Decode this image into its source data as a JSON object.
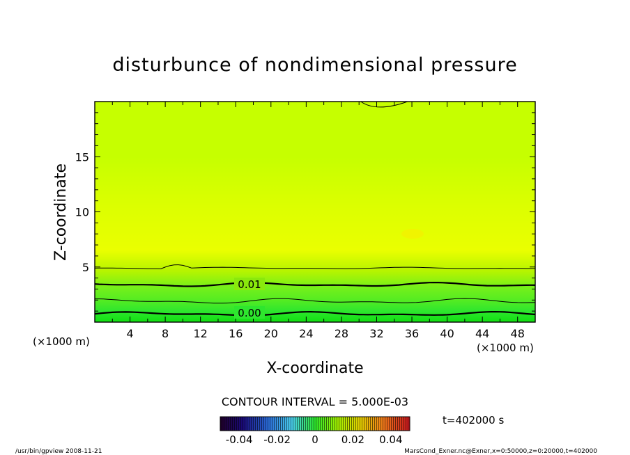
{
  "chart_data": {
    "type": "heatmap",
    "title": "disturbunce of nondimensional pressure",
    "xlabel": "X-coordinate",
    "ylabel": "Z-coordinate",
    "x_unit_left": "(×1000 m)",
    "x_unit_right": "(×1000 m)",
    "xlim": [
      0,
      50
    ],
    "ylim": [
      0,
      20
    ],
    "x_ticks": [
      "4",
      "8",
      "12",
      "16",
      "20",
      "24",
      "28",
      "32",
      "36",
      "40",
      "44",
      "48"
    ],
    "y_ticks": [
      "5",
      "10",
      "15"
    ],
    "contour_labels": [
      "0.01",
      "0.00"
    ],
    "contour_interval_text": "CONTOUR INTERVAL = 5.000E-03",
    "time_text": "t=402000 s",
    "colorbar": {
      "range": [
        -0.05,
        0.05
      ],
      "ticks": [
        "-0.04",
        "-0.02",
        "0",
        "0.02",
        "0.04"
      ]
    },
    "bands": [
      {
        "z": 0.0,
        "value": 0.0,
        "color": "#11e011"
      },
      {
        "z": 1.0,
        "value": 0.0025,
        "color": "#2ee62e"
      },
      {
        "z": 2.0,
        "value": 0.0055,
        "color": "#55ec22"
      },
      {
        "z": 3.2,
        "value": 0.009,
        "color": "#77f01a"
      },
      {
        "z": 4.6,
        "value": 0.012,
        "color": "#b5f400"
      },
      {
        "z": 6.5,
        "value": 0.014,
        "color": "#eaff00"
      },
      {
        "z": 10.5,
        "value": 0.013,
        "color": "#dcff00"
      },
      {
        "z": 15.0,
        "value": 0.011,
        "color": "#c6ff00"
      },
      {
        "z": 20.0,
        "value": 0.011,
        "color": "#c6ff00"
      }
    ]
  },
  "footer": {
    "left": "/usr/bin/gpview   2008-11-21",
    "right": "MarsCond_Exner.nc@Exner,x=0:50000,z=0:20000,t=402000"
  }
}
